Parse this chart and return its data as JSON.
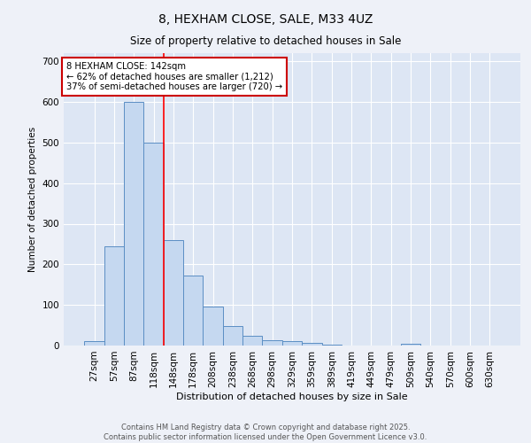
{
  "title1": "8, HEXHAM CLOSE, SALE, M33 4UZ",
  "title2": "Size of property relative to detached houses in Sale",
  "xlabel": "Distribution of detached houses by size in Sale",
  "ylabel": "Number of detached properties",
  "bar_labels": [
    "27sqm",
    "57sqm",
    "87sqm",
    "118sqm",
    "148sqm",
    "178sqm",
    "208sqm",
    "238sqm",
    "268sqm",
    "298sqm",
    "329sqm",
    "359sqm",
    "389sqm",
    "419sqm",
    "449sqm",
    "479sqm",
    "509sqm",
    "540sqm",
    "570sqm",
    "600sqm",
    "630sqm"
  ],
  "bar_values": [
    10,
    245,
    600,
    500,
    260,
    172,
    95,
    48,
    25,
    13,
    10,
    6,
    3,
    0,
    0,
    0,
    5,
    0,
    0,
    0,
    0
  ],
  "bar_color": "#c5d8f0",
  "bar_edge_color": "#5b8ec4",
  "red_line_color": "#ff0000",
  "red_line_x": 3.5,
  "annotation_text": "8 HEXHAM CLOSE: 142sqm\n← 62% of detached houses are smaller (1,212)\n37% of semi-detached houses are larger (720) →",
  "annotation_box_facecolor": "#ffffff",
  "annotation_box_edgecolor": "#cc0000",
  "ylim": [
    0,
    720
  ],
  "yticks": [
    0,
    100,
    200,
    300,
    400,
    500,
    600,
    700
  ],
  "footer1": "Contains HM Land Registry data © Crown copyright and database right 2025.",
  "footer2": "Contains public sector information licensed under the Open Government Licence v3.0.",
  "fig_facecolor": "#eef1f8",
  "plot_facecolor": "#dde6f4",
  "grid_color": "#ffffff"
}
